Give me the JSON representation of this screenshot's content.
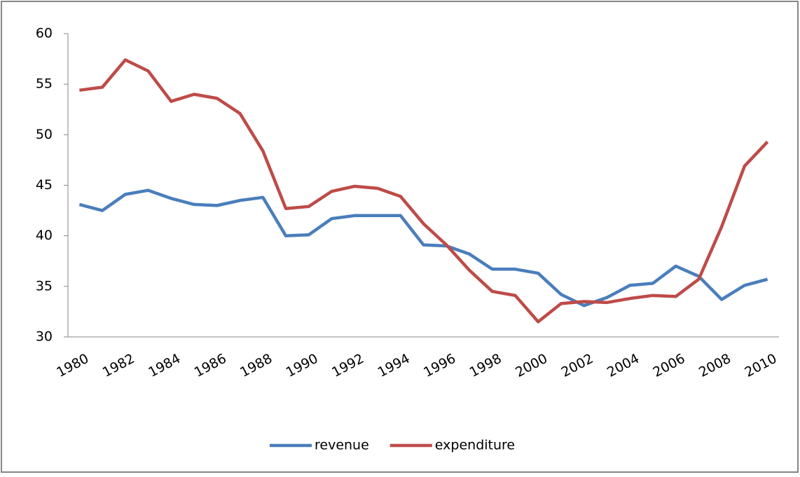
{
  "chart_data": {
    "type": "line",
    "categories": [
      "1980",
      null,
      "1982",
      null,
      "1984",
      null,
      "1986",
      null,
      "1988",
      null,
      "1990",
      null,
      "1992",
      null,
      "1994",
      null,
      "1996",
      null,
      "1998",
      null,
      "2000",
      null,
      "2002",
      null,
      "2004",
      null,
      "2006",
      null,
      "2008",
      null,
      "2010"
    ],
    "series": [
      {
        "name": "revenue",
        "color": "#4a7ebb",
        "values": [
          43.1,
          42.5,
          44.1,
          44.5,
          43.7,
          43.1,
          43.0,
          43.5,
          43.8,
          40.0,
          40.1,
          41.7,
          42.0,
          42.0,
          42.0,
          39.1,
          39.0,
          38.2,
          36.7,
          36.7,
          36.3,
          34.2,
          33.1,
          33.9,
          35.1,
          35.3,
          37.0,
          36.0,
          33.7,
          35.1,
          35.7
        ]
      },
      {
        "name": "expenditure",
        "color": "#be4b48",
        "values": [
          54.4,
          54.7,
          57.4,
          56.3,
          53.3,
          54.0,
          53.6,
          52.1,
          48.4,
          42.7,
          42.9,
          44.4,
          44.9,
          44.7,
          43.9,
          41.2,
          39.1,
          36.6,
          34.5,
          34.1,
          31.5,
          33.3,
          33.5,
          33.4,
          33.8,
          34.1,
          34.0,
          35.7,
          40.9,
          46.9,
          49.3
        ]
      }
    ],
    "ylim": [
      30,
      60
    ],
    "yticks": [
      30,
      35,
      40,
      45,
      50,
      55,
      60
    ],
    "grid": false,
    "legend": "bottom"
  }
}
